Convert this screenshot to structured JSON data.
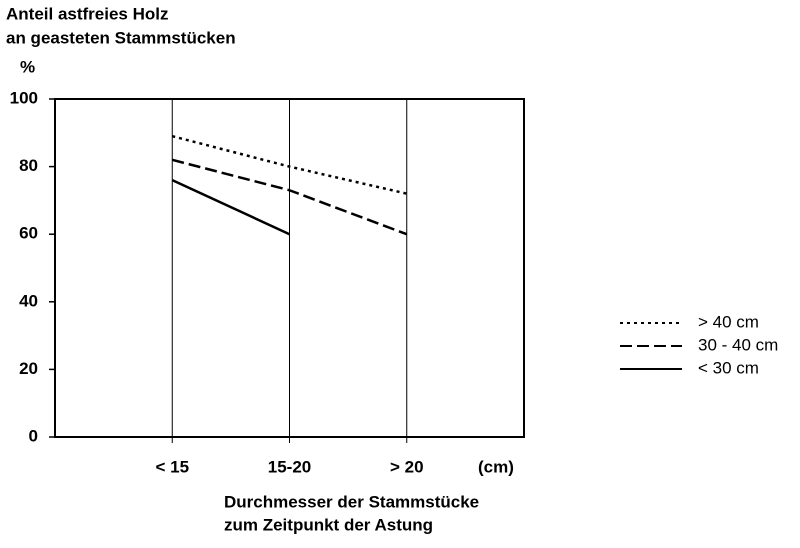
{
  "chart_data": {
    "type": "line",
    "title": [
      "Anteil astfreies Holz",
      "an geasteten Stammstücken"
    ],
    "y_unit": "%",
    "x_unit": "(cm)",
    "x_label": [
      "Durchmesser der Stammstücke",
      "zum Zeitpunkt der Astung"
    ],
    "categories": [
      "< 15",
      "15-20",
      "> 20"
    ],
    "ylim": [
      0,
      100
    ],
    "yticks": [
      0,
      20,
      40,
      60,
      80,
      100
    ],
    "grid": "x",
    "legend": "right",
    "series": [
      {
        "name": "> 40 cm",
        "color": "#000000",
        "linestyle": "dotted",
        "values": [
          89,
          80,
          72
        ]
      },
      {
        "name": "30 - 40 cm",
        "color": "#000000",
        "linestyle": "dashed",
        "values": [
          82,
          73,
          60
        ]
      },
      {
        "name": "< 30 cm",
        "color": "#000000",
        "linestyle": "solid",
        "values": [
          76,
          60,
          null
        ]
      }
    ]
  }
}
